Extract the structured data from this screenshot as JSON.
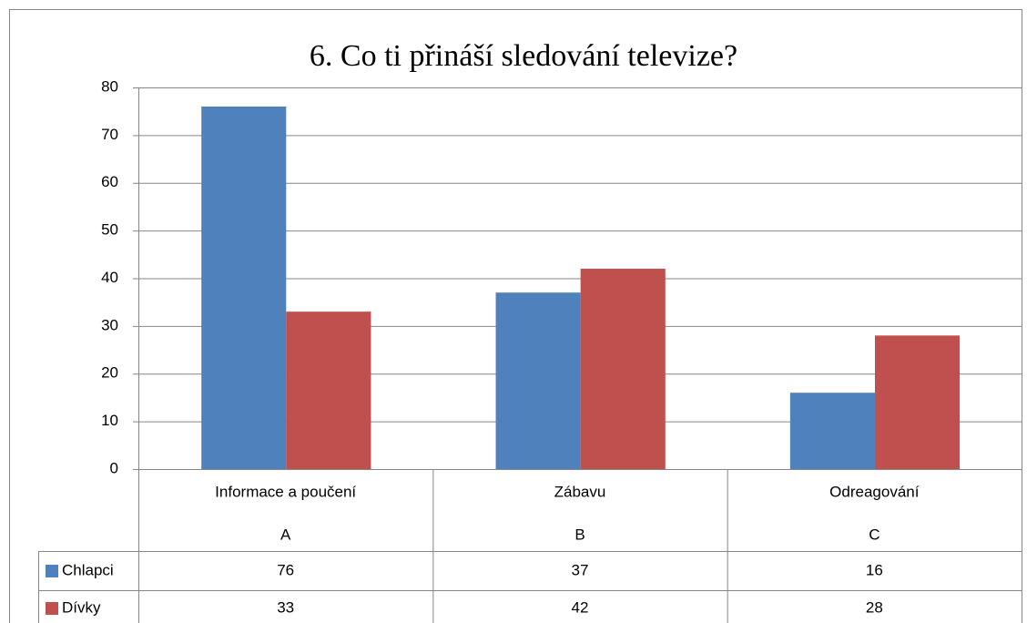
{
  "chart_data": {
    "type": "bar",
    "title": "6. Co ti přináší sledování televize?",
    "categories": [
      "Informace a poučení",
      "Zábavu",
      "Odreagování"
    ],
    "subcategories": [
      "A",
      "B",
      "C"
    ],
    "series": [
      {
        "name": "Chlapci",
        "color": "#4f81bd",
        "values": [
          76,
          37,
          16
        ]
      },
      {
        "name": "Dívky",
        "color": "#c0504d",
        "values": [
          33,
          42,
          28
        ]
      }
    ],
    "ylim": [
      0,
      80
    ],
    "yticks": [
      0,
      10,
      20,
      30,
      40,
      50,
      60,
      70,
      80
    ],
    "grid": true,
    "data_table": true
  }
}
